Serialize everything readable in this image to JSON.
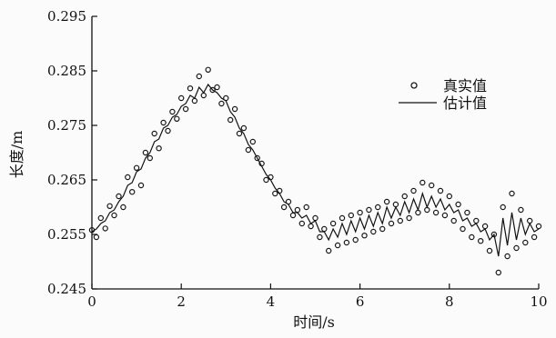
{
  "chart_data": {
    "type": "scatter",
    "xlabel": "时间/s",
    "ylabel": "长度/m",
    "xlim": [
      0,
      10
    ],
    "ylim": [
      0.245,
      0.295
    ],
    "x_ticks": [
      0,
      2,
      4,
      6,
      8,
      10
    ],
    "y_ticks": [
      0.245,
      0.255,
      0.265,
      0.275,
      0.285,
      0.295
    ],
    "x_tick_labels": [
      "0",
      "2",
      "4",
      "6",
      "8",
      "10"
    ],
    "y_tick_labels": [
      "0.245",
      "0.255",
      "0.265",
      "0.275",
      "0.285",
      "0.295"
    ],
    "grid": false,
    "legend_position": "top-right",
    "colors": {
      "axis": "#111111",
      "marker": "#1a1a1a",
      "line": "#111111"
    },
    "series": [
      {
        "name": "真实值",
        "style": "markers",
        "x": [
          0,
          0.1,
          0.2,
          0.3,
          0.4,
          0.5,
          0.6,
          0.7,
          0.8,
          0.9,
          1,
          1.1,
          1.2,
          1.3,
          1.4,
          1.5,
          1.6,
          1.7,
          1.8,
          1.9,
          2,
          2.1,
          2.2,
          2.3,
          2.4,
          2.5,
          2.6,
          2.7,
          2.8,
          2.9,
          3,
          3.1,
          3.2,
          3.3,
          3.4,
          3.5,
          3.6,
          3.7,
          3.8,
          3.9,
          4,
          4.1,
          4.2,
          4.3,
          4.4,
          4.5,
          4.6,
          4.7,
          4.8,
          4.9,
          5,
          5.1,
          5.2,
          5.3,
          5.4,
          5.5,
          5.6,
          5.7,
          5.8,
          5.9,
          6,
          6.1,
          6.2,
          6.3,
          6.4,
          6.5,
          6.6,
          6.7,
          6.8,
          6.9,
          7,
          7.1,
          7.2,
          7.3,
          7.4,
          7.5,
          7.6,
          7.7,
          7.8,
          7.9,
          8,
          8.1,
          8.2,
          8.3,
          8.4,
          8.5,
          8.6,
          8.7,
          8.8,
          8.9,
          9,
          9.1,
          9.2,
          9.3,
          9.4,
          9.5,
          9.6,
          9.7,
          9.8,
          9.9,
          10
        ],
        "y": [
          0.2558,
          0.2545,
          0.258,
          0.2561,
          0.2602,
          0.2585,
          0.262,
          0.26,
          0.2655,
          0.2628,
          0.2672,
          0.264,
          0.27,
          0.269,
          0.2735,
          0.2708,
          0.2755,
          0.274,
          0.2775,
          0.2762,
          0.28,
          0.278,
          0.2818,
          0.2795,
          0.284,
          0.2805,
          0.2852,
          0.2815,
          0.282,
          0.279,
          0.28,
          0.276,
          0.278,
          0.2735,
          0.2745,
          0.2705,
          0.272,
          0.269,
          0.268,
          0.265,
          0.2655,
          0.2625,
          0.263,
          0.26,
          0.261,
          0.2585,
          0.2595,
          0.257,
          0.26,
          0.2565,
          0.258,
          0.2545,
          0.256,
          0.252,
          0.257,
          0.253,
          0.258,
          0.2535,
          0.2585,
          0.254,
          0.259,
          0.2548,
          0.2595,
          0.2555,
          0.26,
          0.256,
          0.261,
          0.257,
          0.2605,
          0.2575,
          0.262,
          0.258,
          0.263,
          0.259,
          0.2645,
          0.2595,
          0.264,
          0.259,
          0.263,
          0.2585,
          0.262,
          0.2575,
          0.2605,
          0.256,
          0.259,
          0.2545,
          0.2575,
          0.2538,
          0.2565,
          0.252,
          0.255,
          0.248,
          0.26,
          0.251,
          0.2625,
          0.2525,
          0.2595,
          0.2535,
          0.2575,
          0.2545,
          0.2565
        ]
      },
      {
        "name": "估计值",
        "style": "line",
        "x": [
          0,
          0.1,
          0.2,
          0.3,
          0.4,
          0.5,
          0.6,
          0.7,
          0.8,
          0.9,
          1,
          1.1,
          1.2,
          1.3,
          1.4,
          1.5,
          1.6,
          1.7,
          1.8,
          1.9,
          2,
          2.1,
          2.2,
          2.3,
          2.4,
          2.5,
          2.6,
          2.7,
          2.8,
          2.9,
          3,
          3.1,
          3.2,
          3.3,
          3.4,
          3.5,
          3.6,
          3.7,
          3.8,
          3.9,
          4,
          4.1,
          4.2,
          4.3,
          4.4,
          4.5,
          4.6,
          4.7,
          4.8,
          4.9,
          5,
          5.1,
          5.2,
          5.3,
          5.4,
          5.5,
          5.6,
          5.7,
          5.8,
          5.9,
          6,
          6.1,
          6.2,
          6.3,
          6.4,
          6.5,
          6.6,
          6.7,
          6.8,
          6.9,
          7,
          7.1,
          7.2,
          7.3,
          7.4,
          7.5,
          7.6,
          7.7,
          7.8,
          7.9,
          8,
          8.1,
          8.2,
          8.3,
          8.4,
          8.5,
          8.6,
          8.7,
          8.8,
          8.9,
          9,
          9.1,
          9.2,
          9.3,
          9.4,
          9.5,
          9.6,
          9.7,
          9.8,
          9.9,
          10
        ],
        "y": [
          0.2555,
          0.256,
          0.257,
          0.2575,
          0.259,
          0.2595,
          0.261,
          0.262,
          0.264,
          0.2645,
          0.2665,
          0.267,
          0.269,
          0.27,
          0.272,
          0.2725,
          0.2745,
          0.275,
          0.2765,
          0.277,
          0.2785,
          0.279,
          0.2805,
          0.28,
          0.282,
          0.281,
          0.2825,
          0.2815,
          0.281,
          0.28,
          0.2795,
          0.2775,
          0.2765,
          0.2745,
          0.2735,
          0.2715,
          0.2705,
          0.269,
          0.2675,
          0.266,
          0.265,
          0.2635,
          0.2625,
          0.261,
          0.2605,
          0.259,
          0.259,
          0.258,
          0.2585,
          0.257,
          0.2575,
          0.2555,
          0.2555,
          0.254,
          0.256,
          0.2545,
          0.257,
          0.255,
          0.2575,
          0.2555,
          0.258,
          0.256,
          0.2585,
          0.2565,
          0.259,
          0.257,
          0.26,
          0.258,
          0.26,
          0.2585,
          0.261,
          0.259,
          0.2615,
          0.2595,
          0.2625,
          0.26,
          0.262,
          0.26,
          0.2615,
          0.2595,
          0.2605,
          0.259,
          0.2595,
          0.2575,
          0.258,
          0.2565,
          0.257,
          0.2555,
          0.256,
          0.254,
          0.255,
          0.251,
          0.258,
          0.253,
          0.259,
          0.254,
          0.258,
          0.255,
          0.257,
          0.2555,
          0.256
        ]
      }
    ]
  }
}
